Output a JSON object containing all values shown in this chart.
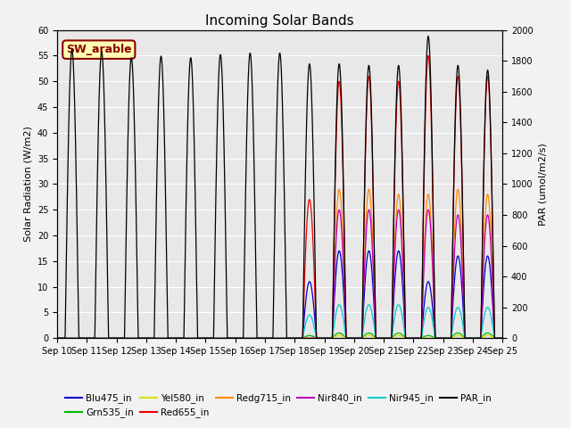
{
  "title": "Incoming Solar Bands",
  "ylabel_left": "Solar Radiation (W/m2)",
  "ylabel_right": "PAR (umol/m2/s)",
  "ylim_left": [
    0,
    60
  ],
  "ylim_right": [
    0,
    2000
  ],
  "yticks_left": [
    0,
    5,
    10,
    15,
    20,
    25,
    30,
    35,
    40,
    45,
    50,
    55,
    60
  ],
  "yticks_right": [
    0,
    200,
    400,
    600,
    800,
    1000,
    1200,
    1400,
    1600,
    1800,
    2000
  ],
  "background_color": "#e8e8e8",
  "fig_bg_color": "#f2f2f2",
  "annotation_text": "SW_arable",
  "annotation_color": "#8b0000",
  "annotation_bg": "#ffffb3",
  "annotation_border": "#8b0000",
  "grid_color": "#ffffff",
  "series": [
    {
      "name": "Blu475_in",
      "color": "#0000cc"
    },
    {
      "name": "Grn535_in",
      "color": "#00bb00"
    },
    {
      "name": "Yel580_in",
      "color": "#dddd00"
    },
    {
      "name": "Red655_in",
      "color": "#ee0000"
    },
    {
      "name": "Redg715_in",
      "color": "#ff8800"
    },
    {
      "name": "Nir840_in",
      "color": "#bb00bb"
    },
    {
      "name": "Nir945_in",
      "color": "#00cccc"
    },
    {
      "name": "PAR_in",
      "color": "#000000"
    }
  ],
  "par_peaks": [
    1870,
    1860,
    1820,
    1830,
    1820,
    1840,
    1850,
    1850,
    1780,
    1780,
    1770,
    1770,
    1960,
    1770,
    1740
  ],
  "band_peaks": {
    "8": [
      11,
      0.5,
      0,
      27,
      0,
      0,
      4.5
    ],
    "9": [
      17,
      1.0,
      0.5,
      50,
      29,
      25,
      6.5
    ],
    "10": [
      17,
      1.0,
      0.5,
      51,
      29,
      25,
      6.5
    ],
    "11": [
      17,
      1.0,
      0.5,
      50,
      28,
      25,
      6.5
    ],
    "12": [
      11,
      0.5,
      0,
      55,
      28,
      25,
      6.0
    ],
    "13": [
      16,
      1.0,
      0.5,
      51,
      29,
      24,
      6.0
    ],
    "14": [
      16,
      1.0,
      0.5,
      51,
      28,
      24,
      6.0
    ]
  }
}
